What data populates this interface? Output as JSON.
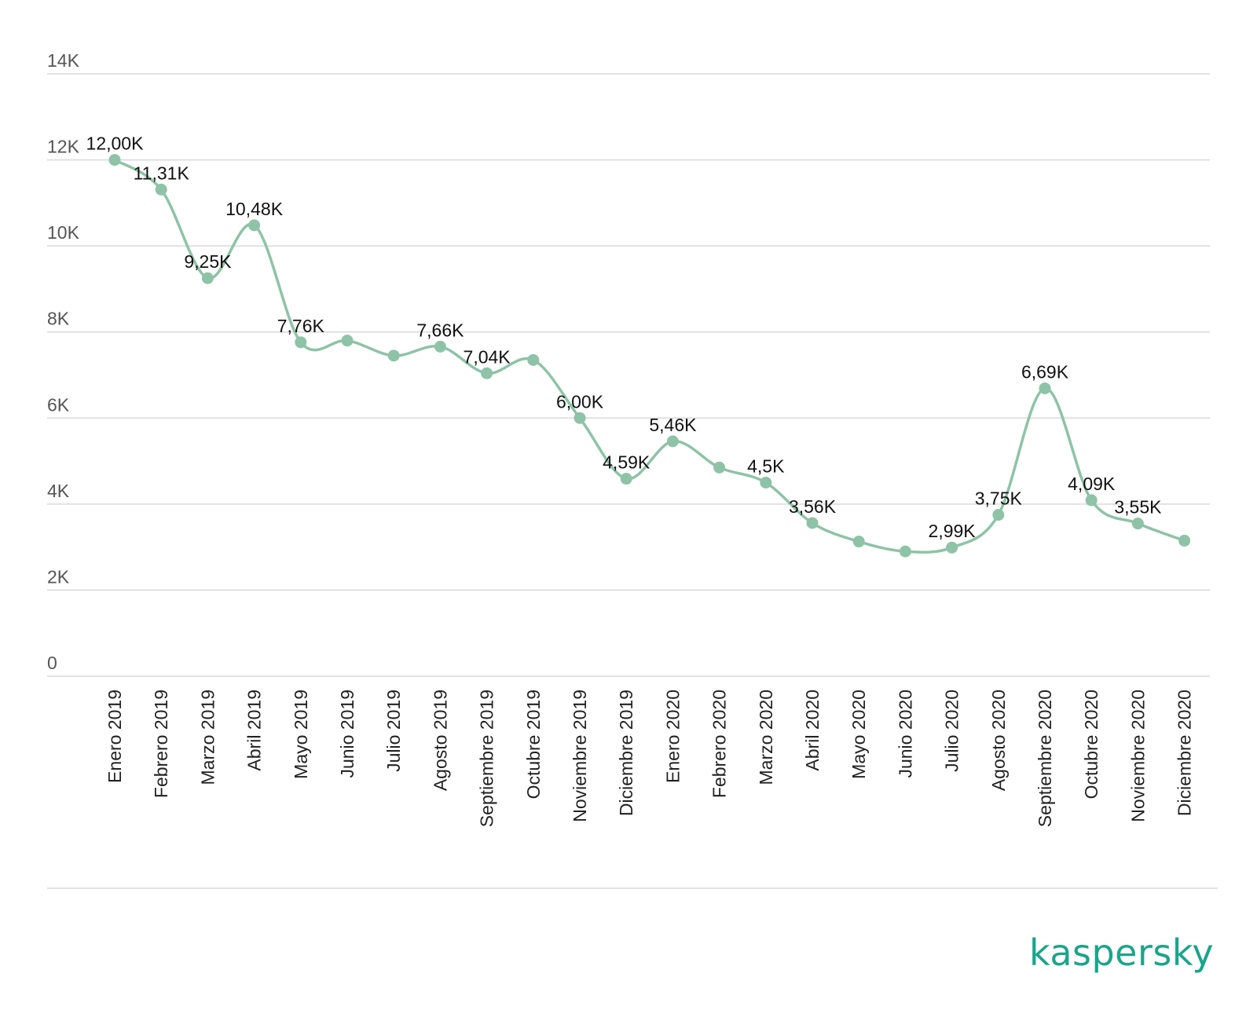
{
  "chart_data": {
    "type": "line",
    "categories": [
      "Enero 2019",
      "Febrero 2019",
      "Marzo 2019",
      "Abril 2019",
      "Mayo 2019",
      "Junio 2019",
      "Julio 2019",
      "Agosto 2019",
      "Septiembre 2019",
      "Octubre 2019",
      "Noviembre 2019",
      "Diciembre 2019",
      "Enero 2020",
      "Febrero 2020",
      "Marzo 2020",
      "Abril 2020",
      "Mayo 2020",
      "Junio 2020",
      "Julio 2020",
      "Agosto 2020",
      "Septiembre 2020",
      "Octubre 2020",
      "Noviembre 2020",
      "Diciembre 2020"
    ],
    "values": [
      12.0,
      11.31,
      9.25,
      10.48,
      7.76,
      7.8,
      7.45,
      7.66,
      7.04,
      7.35,
      6.0,
      4.59,
      5.46,
      4.85,
      4.5,
      3.56,
      3.13,
      2.9,
      2.99,
      3.75,
      6.69,
      4.09,
      3.55,
      3.15
    ],
    "data_labels": [
      "12,00K",
      "11,31K",
      "9,25K",
      "10,48K",
      "7,76K",
      "",
      "",
      "7,66K",
      "7,04K",
      "",
      "6,00K",
      "4,59K",
      "5,46K",
      "",
      "4,5K",
      "3,56K",
      "",
      "",
      "2,99K",
      "3,75K",
      "6,69K",
      "4,09K",
      "3,55K",
      ""
    ],
    "yticks": [
      "0",
      "2K",
      "4K",
      "6K",
      "8K",
      "10K",
      "12K",
      "14K"
    ],
    "ylim": [
      0,
      14
    ],
    "grid": true,
    "title": "",
    "xlabel": "",
    "ylabel": "",
    "line_color": "#8ec3a7"
  },
  "brand": {
    "logo_text": "kaspersky",
    "logo_color": "#1aa58b"
  }
}
